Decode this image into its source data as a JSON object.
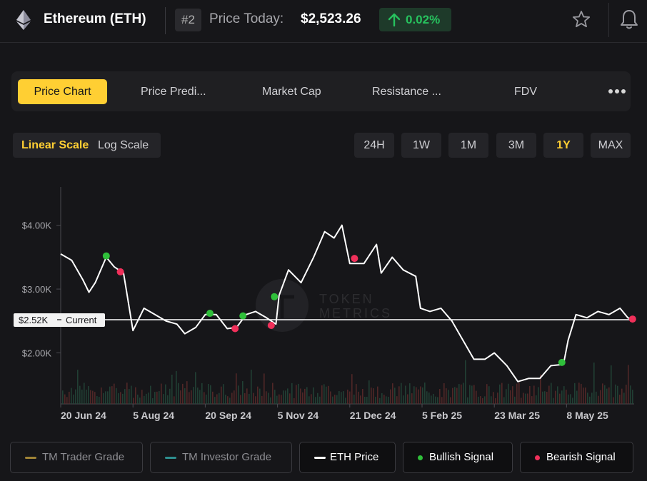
{
  "header": {
    "coin_name": "Ethereum (ETH)",
    "rank": "#2",
    "price_label": "Price Today:",
    "price": "$2,523.26",
    "change": "0.02%",
    "change_color": "#27c25e",
    "icons": [
      "ethereum-logo",
      "arrow-up-icon",
      "star-icon",
      "bell-icon"
    ]
  },
  "tabs": [
    {
      "label": "Price Chart",
      "active": true
    },
    {
      "label": "Price Predi..."
    },
    {
      "label": "Market Cap"
    },
    {
      "label": "Resistance ..."
    },
    {
      "label": "FDV"
    }
  ],
  "scale": {
    "linear": "Linear Scale",
    "log": "Log Scale",
    "selected": "linear"
  },
  "ranges": [
    {
      "label": "24H"
    },
    {
      "label": "1W"
    },
    {
      "label": "1M"
    },
    {
      "label": "3M"
    },
    {
      "label": "1Y",
      "active": true
    },
    {
      "label": "MAX"
    }
  ],
  "accent_color": "#ffcf33",
  "chart_data": {
    "type": "line",
    "watermark": [
      "TOKEN",
      "METRICS"
    ],
    "ylim": [
      1200,
      4600
    ],
    "yticks": [
      {
        "value": 4000,
        "label": "$4.00K"
      },
      {
        "value": 3000,
        "label": "$3.00K"
      },
      {
        "value": 2000,
        "label": "$2.00K"
      }
    ],
    "xlabels": [
      {
        "date": "2024-06-20",
        "label": "20 Jun 24"
      },
      {
        "date": "2024-08-05",
        "label": "5 Aug 24"
      },
      {
        "date": "2024-09-20",
        "label": "20 Sep 24"
      },
      {
        "date": "2024-11-05",
        "label": "5 Nov 24"
      },
      {
        "date": "2024-12-21",
        "label": "21 Dec 24"
      },
      {
        "date": "2025-02-05",
        "label": "5 Feb 25"
      },
      {
        "date": "2025-03-23",
        "label": "23 Mar 25"
      },
      {
        "date": "2025-05-08",
        "label": "8 May 25"
      }
    ],
    "current_value": 2520,
    "current_label": "$2.52K",
    "current_text": "Current",
    "series": [
      {
        "name": "ETH Price",
        "color": "#ffffff",
        "points": [
          [
            "2024-06-20",
            3550
          ],
          [
            "2024-06-27",
            3450
          ],
          [
            "2024-07-04",
            3150
          ],
          [
            "2024-07-08",
            2950
          ],
          [
            "2024-07-12",
            3100
          ],
          [
            "2024-07-19",
            3500
          ],
          [
            "2024-07-24",
            3350
          ],
          [
            "2024-07-30",
            3250
          ],
          [
            "2024-08-05",
            2350
          ],
          [
            "2024-08-12",
            2700
          ],
          [
            "2024-08-19",
            2600
          ],
          [
            "2024-08-26",
            2500
          ],
          [
            "2024-09-02",
            2450
          ],
          [
            "2024-09-07",
            2300
          ],
          [
            "2024-09-14",
            2400
          ],
          [
            "2024-09-20",
            2600
          ],
          [
            "2024-09-27",
            2600
          ],
          [
            "2024-10-04",
            2380
          ],
          [
            "2024-10-10",
            2400
          ],
          [
            "2024-10-16",
            2600
          ],
          [
            "2024-10-22",
            2650
          ],
          [
            "2024-10-29",
            2550
          ],
          [
            "2024-11-04",
            2450
          ],
          [
            "2024-11-06",
            2900
          ],
          [
            "2024-11-12",
            3300
          ],
          [
            "2024-11-20",
            3100
          ],
          [
            "2024-11-28",
            3500
          ],
          [
            "2024-12-05",
            3900
          ],
          [
            "2024-12-11",
            3800
          ],
          [
            "2024-12-16",
            4000
          ],
          [
            "2024-12-21",
            3400
          ],
          [
            "2024-12-30",
            3400
          ],
          [
            "2025-01-07",
            3700
          ],
          [
            "2025-01-10",
            3250
          ],
          [
            "2025-01-17",
            3500
          ],
          [
            "2025-01-24",
            3300
          ],
          [
            "2025-02-01",
            3200
          ],
          [
            "2025-02-04",
            2700
          ],
          [
            "2025-02-10",
            2650
          ],
          [
            "2025-02-17",
            2700
          ],
          [
            "2025-02-24",
            2500
          ],
          [
            "2025-03-03",
            2200
          ],
          [
            "2025-03-10",
            1900
          ],
          [
            "2025-03-17",
            1900
          ],
          [
            "2025-03-23",
            2000
          ],
          [
            "2025-03-31",
            1800
          ],
          [
            "2025-04-07",
            1550
          ],
          [
            "2025-04-14",
            1600
          ],
          [
            "2025-04-21",
            1600
          ],
          [
            "2025-04-28",
            1800
          ],
          [
            "2025-05-06",
            1820
          ],
          [
            "2025-05-09",
            2200
          ],
          [
            "2025-05-14",
            2600
          ],
          [
            "2025-05-21",
            2550
          ],
          [
            "2025-05-28",
            2650
          ],
          [
            "2025-06-04",
            2600
          ],
          [
            "2025-06-11",
            2700
          ],
          [
            "2025-06-16",
            2550
          ],
          [
            "2025-06-20",
            2520
          ]
        ]
      }
    ],
    "signals": [
      {
        "type": "bullish",
        "date": "2024-07-19",
        "value": 3520
      },
      {
        "type": "bearish",
        "date": "2024-07-28",
        "value": 3270
      },
      {
        "type": "bullish",
        "date": "2024-09-23",
        "value": 2620
      },
      {
        "type": "bearish",
        "date": "2024-10-09",
        "value": 2380
      },
      {
        "type": "bullish",
        "date": "2024-10-14",
        "value": 2580
      },
      {
        "type": "bearish",
        "date": "2024-11-01",
        "value": 2430
      },
      {
        "type": "bullish",
        "date": "2024-11-03",
        "value": 2880
      },
      {
        "type": "bearish",
        "date": "2024-12-24",
        "value": 3480
      },
      {
        "type": "bullish",
        "date": "2025-05-05",
        "value": 1850
      },
      {
        "type": "bearish",
        "date": "2025-06-19",
        "value": 2530
      }
    ]
  },
  "legend": [
    {
      "label": "TM Trader Grade",
      "color": "#a08436",
      "shape": "line",
      "active": false
    },
    {
      "label": "TM Investor Grade",
      "color": "#2e8f8f",
      "shape": "line",
      "active": false
    },
    {
      "label": "ETH Price",
      "color": "#ffffff",
      "shape": "line",
      "active": true
    },
    {
      "label": "Bullish Signal",
      "color": "#2fbf3a",
      "shape": "dot",
      "active": true
    },
    {
      "label": "Bearish Signal",
      "color": "#f0305a",
      "shape": "dot",
      "active": true
    }
  ]
}
